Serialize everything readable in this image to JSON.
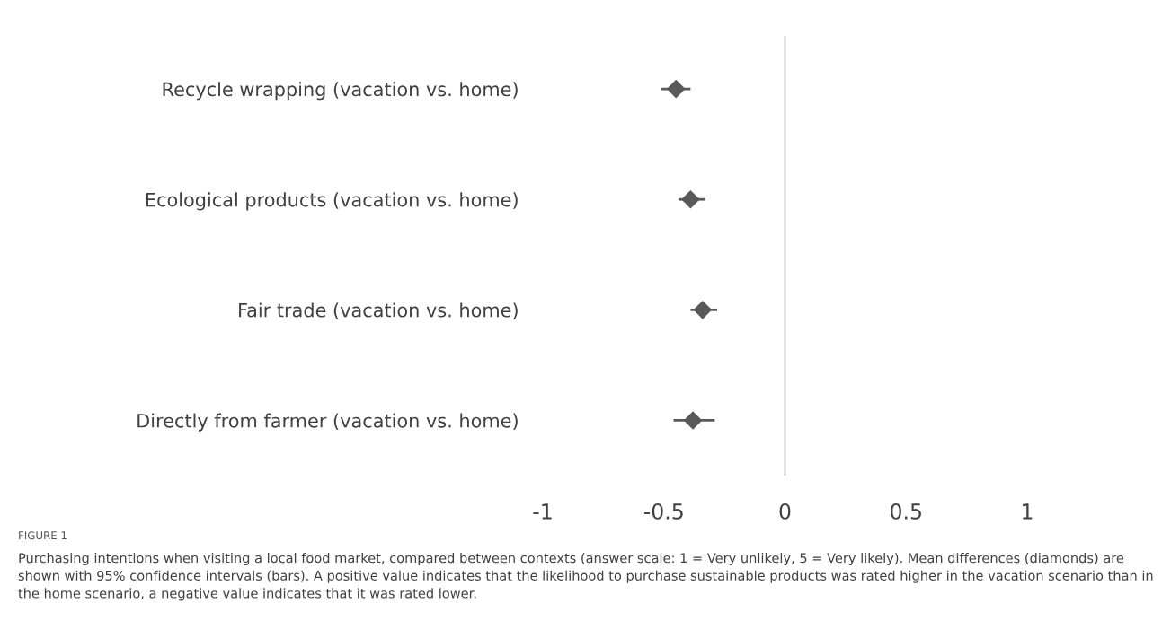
{
  "chart_data": {
    "type": "scatter",
    "categories": [
      "Recycle wrapping (vacation vs. home)",
      "Ecological products (vacation vs. home)",
      "Fair trade (vacation vs. home)",
      "Directly from farmer (vacation vs. home)"
    ],
    "orientation": "horizontal",
    "series": [
      {
        "color": "#595959",
        "values": [
          -0.45,
          -0.39,
          -0.34,
          -0.38
        ],
        "errors": [
          [
            -0.51,
            -0.39
          ],
          [
            -0.44,
            -0.33
          ],
          [
            -0.39,
            -0.28
          ],
          [
            -0.46,
            -0.29
          ]
        ]
      }
    ],
    "marker": "diamond",
    "xlim": [
      -1,
      1
    ],
    "xticks": [
      -1,
      -0.5,
      0,
      0.5,
      1
    ],
    "grid": false,
    "legend": false,
    "ref_lines": [
      {
        "axis": "x",
        "value": 0,
        "color": "#d0d0d0"
      }
    ],
    "annotations": [
      "FIGURE 1",
      "Purchasing intentions when visiting a local food market, compared between contexts (answer scale: 1 = Very unlikely, 5 = Very likely). Mean differences (diamonds) are shown with 95% confidence intervals (bars). A positive value indicates that the likelihood to purchase sustainable products was rated higher in the vacation scenario than in the home scenario, a negative value indicates that it was rated lower."
    ]
  }
}
